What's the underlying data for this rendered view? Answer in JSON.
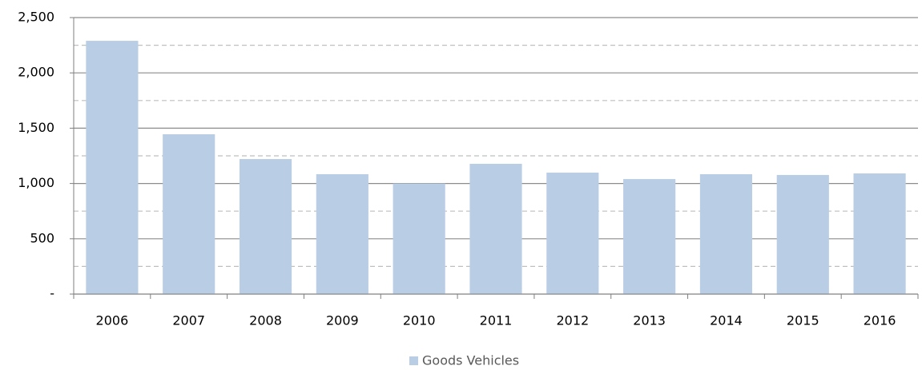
{
  "chart_data": {
    "type": "bar",
    "categories": [
      "2006",
      "2007",
      "2008",
      "2009",
      "2010",
      "2011",
      "2012",
      "2013",
      "2014",
      "2015",
      "2016"
    ],
    "series": [
      {
        "name": "Goods Vehicles",
        "color": "#b9cde5",
        "values": [
          2290,
          1445,
          1221,
          1084,
          1000,
          1178,
          1098,
          1040,
          1084,
          1077,
          1091
        ]
      }
    ],
    "ylim": [
      0,
      2500
    ],
    "yticks": [
      {
        "value": 0,
        "label": "-"
      },
      500,
      {
        "value": 1000,
        "label": "1,000"
      },
      {
        "value": 1500,
        "label": "1,500"
      },
      {
        "value": 2000,
        "label": "2,000"
      },
      {
        "value": 2500,
        "label": "2,500"
      }
    ],
    "minor_yticks": [
      250,
      750,
      1250,
      1750,
      2250
    ],
    "grid": true,
    "legend": "bottom"
  }
}
